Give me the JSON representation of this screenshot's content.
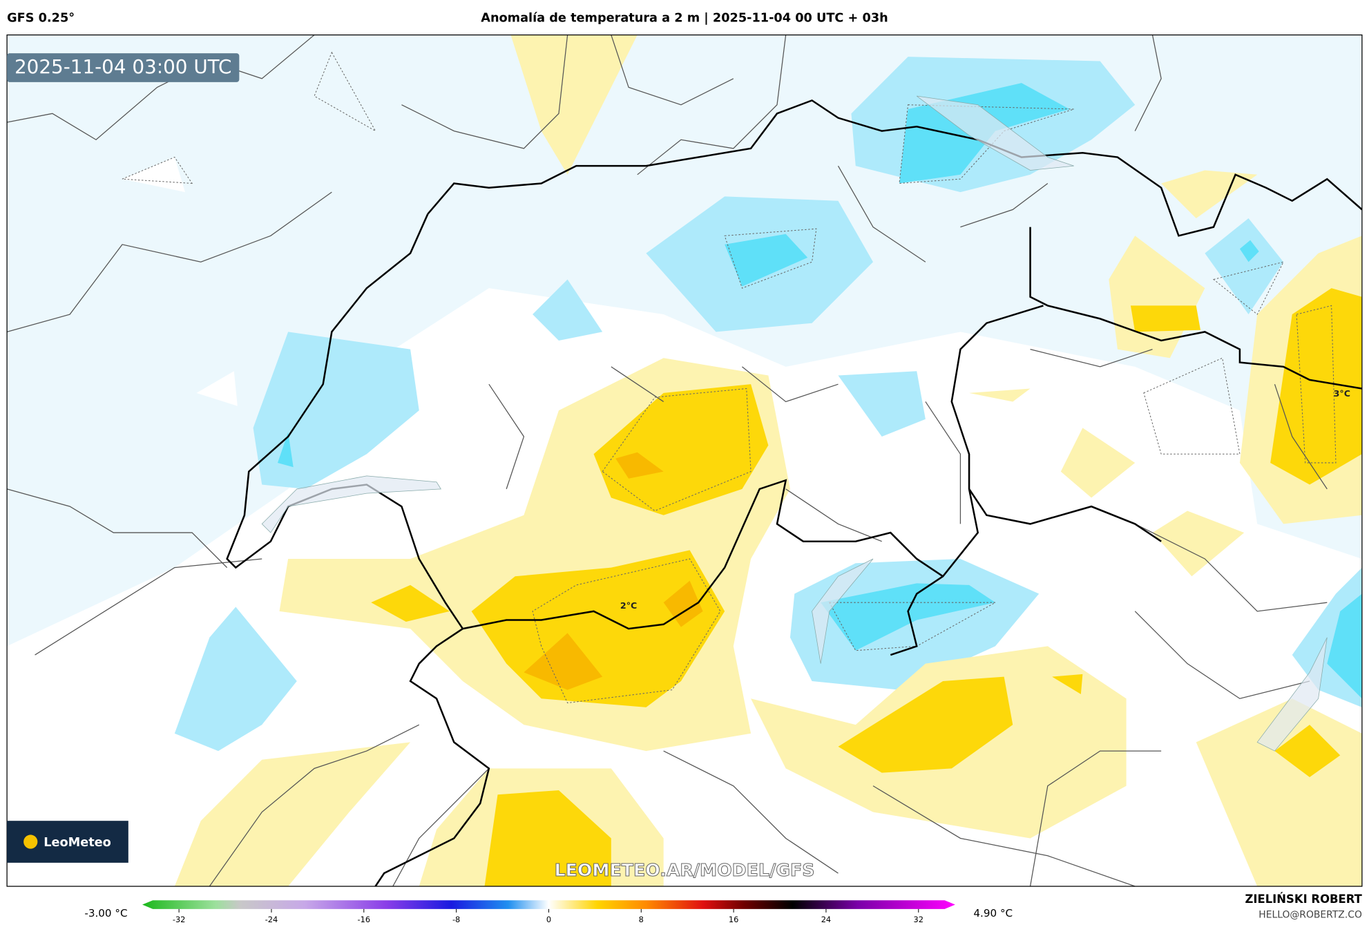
{
  "header": {
    "model": "GFS 0.25°",
    "title": "Anomalía de temperatura a 2 m | 2025-11-04 00 UTC + 03h"
  },
  "map": {
    "valid_time": "2025-11-04 03:00 UTC",
    "contour_labels": [
      "2°C",
      "3°C"
    ],
    "watermark": "LEOMETEO.AR/MODEL/GFS",
    "logo": "LeoMeteo"
  },
  "colorbar": {
    "min_label": "-3.00 °C",
    "max_label": "4.90 °C",
    "ticks": [
      -32,
      -24,
      -16,
      -8,
      0,
      8,
      16,
      24,
      32
    ]
  },
  "footer": {
    "author": "ZIELIŃSKI ROBERT",
    "contact": "HELLO@ROBERTZ.CO"
  }
}
